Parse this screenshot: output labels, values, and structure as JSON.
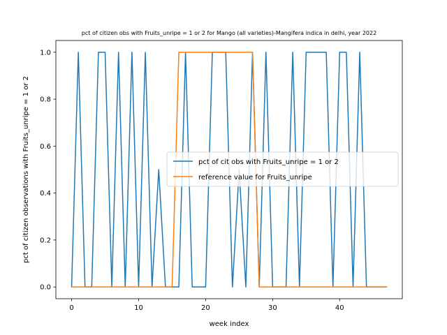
{
  "chart_data": {
    "type": "line",
    "title": "pct of citizen obs with Fruits_unripe = 1 or 2 for Mango (all varieties)-Mangifera indica in delhi, year 2022",
    "xlabel": "week index",
    "ylabel": "pct of citizen observations with Fruits_unripe = 1 or 2",
    "xlim": [
      -2.35,
      49.35
    ],
    "ylim": [
      -0.05,
      1.05
    ],
    "xticks": [
      0,
      10,
      20,
      30,
      40
    ],
    "yticks": [
      0.0,
      0.2,
      0.4,
      0.6,
      0.8,
      1.0
    ],
    "ytick_labels": [
      "0.0",
      "0.2",
      "0.4",
      "0.6",
      "0.8",
      "1.0"
    ],
    "grid": false,
    "legend_position": "center-right",
    "series": [
      {
        "name": "pct of cit obs with Fruits_unripe = 1 or 2",
        "color": "#1f77b4",
        "x": [
          0,
          1,
          2,
          3,
          4,
          5,
          6,
          7,
          8,
          9,
          10,
          11,
          12,
          13,
          14,
          15,
          16,
          17,
          18,
          19,
          20,
          21,
          22,
          23,
          24,
          25,
          26,
          27,
          28,
          29,
          30,
          31,
          32,
          33,
          34,
          35,
          36,
          37,
          38,
          39,
          40,
          41,
          42,
          43,
          44,
          45,
          46,
          47
        ],
        "y": [
          0,
          1,
          0,
          0,
          1,
          1,
          0,
          1,
          0,
          1,
          0,
          1,
          0,
          0.5,
          0,
          0,
          0,
          1,
          0,
          0,
          0,
          1,
          1,
          1,
          0,
          0.5,
          0,
          1,
          0,
          1,
          0,
          0,
          0,
          1,
          0,
          1,
          1,
          1,
          1,
          0,
          1,
          1,
          0,
          1,
          0,
          0,
          0,
          0
        ]
      },
      {
        "name": "reference value for Fruits_unripe",
        "color": "#ff7f0e",
        "x": [
          0,
          1,
          2,
          3,
          4,
          5,
          6,
          7,
          8,
          9,
          10,
          11,
          12,
          13,
          14,
          15,
          16,
          17,
          18,
          19,
          20,
          21,
          22,
          23,
          24,
          25,
          26,
          27,
          28,
          29,
          30,
          31,
          32,
          33,
          34,
          35,
          36,
          37,
          38,
          39,
          40,
          41,
          42,
          43,
          44,
          45,
          46,
          47
        ],
        "y": [
          0,
          0,
          0,
          0,
          0,
          0,
          0,
          0,
          0,
          0,
          0,
          0,
          0,
          0,
          0,
          0,
          1,
          1,
          1,
          1,
          1,
          1,
          1,
          1,
          1,
          1,
          1,
          1,
          0,
          0,
          0,
          0,
          0,
          0,
          0,
          0,
          0,
          0,
          0,
          0,
          0,
          0,
          0,
          0,
          0,
          0,
          0,
          0
        ]
      }
    ]
  }
}
